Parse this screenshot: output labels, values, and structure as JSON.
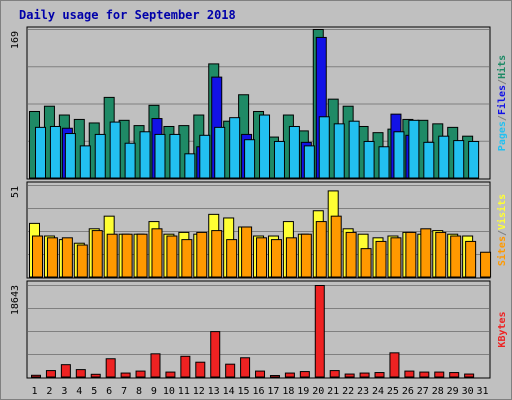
{
  "header": {
    "title": "Daily usage for September 2018"
  },
  "colors": {
    "hits": "#1f8a66",
    "files": "#1212e6",
    "pages": "#22c0f0",
    "visits": "#ffff33",
    "sites": "#ff9900",
    "kbytes": "#ee2222",
    "weekend_day_label": "#009933",
    "weekday_label": "#000000",
    "separator": "#808080"
  },
  "chart_data": [
    {
      "type": "bar",
      "name_panel": "hits-files-pages",
      "categories": [
        "1",
        "2",
        "3",
        "4",
        "5",
        "6",
        "7",
        "8",
        "9",
        "10",
        "11",
        "12",
        "13",
        "14",
        "15",
        "16",
        "17",
        "18",
        "19",
        "20",
        "21",
        "22",
        "23",
        "24",
        "25",
        "26",
        "27",
        "28",
        "29",
        "30",
        "31"
      ],
      "ymax_label": "169",
      "ylim": [
        0,
        169
      ],
      "series_labels": [
        "Pages",
        "Files",
        "Hits"
      ],
      "series_label_separator": "/",
      "series": [
        {
          "name": "Hits",
          "values": [
            76,
            82,
            72,
            67,
            63,
            92,
            66,
            60,
            83,
            59,
            60,
            72,
            130,
            65,
            95,
            76,
            47,
            72,
            54,
            169,
            90,
            82,
            59,
            52,
            56,
            67,
            66,
            62,
            58,
            48,
            0
          ]
        },
        {
          "name": "Files",
          "values": [
            0,
            0,
            57,
            0,
            0,
            0,
            0,
            0,
            68,
            0,
            0,
            36,
            115,
            0,
            50,
            0,
            0,
            0,
            41,
            160,
            0,
            0,
            0,
            0,
            73,
            49,
            0,
            0,
            0,
            0,
            0
          ]
        },
        {
          "name": "Pages",
          "values": [
            58,
            59,
            51,
            37,
            50,
            64,
            40,
            53,
            50,
            50,
            28,
            49,
            58,
            69,
            44,
            72,
            42,
            59,
            37,
            70,
            62,
            65,
            42,
            36,
            53,
            66,
            41,
            48,
            43,
            42,
            0
          ]
        }
      ]
    },
    {
      "type": "bar",
      "name_panel": "sites-visits",
      "categories": [
        "1",
        "2",
        "3",
        "4",
        "5",
        "6",
        "7",
        "8",
        "9",
        "10",
        "11",
        "12",
        "13",
        "14",
        "15",
        "16",
        "17",
        "18",
        "19",
        "20",
        "21",
        "22",
        "23",
        "24",
        "25",
        "26",
        "27",
        "28",
        "29",
        "30",
        "31"
      ],
      "ymax_label": "51",
      "ylim": [
        0,
        51
      ],
      "series_labels": [
        "Sites",
        "Visits"
      ],
      "series_label_separator": "/",
      "series": [
        {
          "name": "Visits",
          "values": [
            30,
            23,
            21,
            19,
            27,
            34,
            24,
            24,
            31,
            24,
            25,
            24,
            35,
            33,
            28,
            23,
            23,
            31,
            24,
            37,
            48,
            27,
            24,
            22,
            23,
            25,
            24,
            26,
            24,
            23,
            0
          ]
        },
        {
          "name": "Sites",
          "values": [
            23,
            22,
            22,
            18,
            26,
            24,
            24,
            24,
            27,
            23,
            21,
            25,
            26,
            21,
            28,
            22,
            21,
            22,
            24,
            31,
            34,
            25,
            16,
            20,
            22,
            25,
            27,
            25,
            23,
            20,
            14
          ]
        }
      ]
    },
    {
      "type": "bar",
      "name_panel": "kbytes",
      "categories": [
        "1",
        "2",
        "3",
        "4",
        "5",
        "6",
        "7",
        "8",
        "9",
        "10",
        "11",
        "12",
        "13",
        "14",
        "15",
        "16",
        "17",
        "18",
        "19",
        "20",
        "21",
        "22",
        "23",
        "24",
        "25",
        "26",
        "27",
        "28",
        "29",
        "30",
        "31"
      ],
      "ymax_label": "18643",
      "ylim": [
        0,
        18643
      ],
      "series_labels": [
        "KBytes"
      ],
      "series": [
        {
          "name": "KBytes",
          "values": [
            450,
            1400,
            2600,
            1600,
            650,
            3800,
            900,
            1300,
            4800,
            1100,
            4300,
            3100,
            9300,
            2700,
            4000,
            1300,
            400,
            900,
            1200,
            18643,
            1400,
            700,
            900,
            1000,
            5000,
            1300,
            1100,
            1100,
            1000,
            700,
            0
          ]
        }
      ]
    }
  ]
}
